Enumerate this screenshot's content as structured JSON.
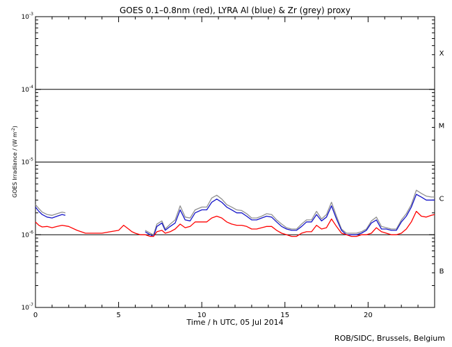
{
  "chart_data": {
    "type": "line",
    "title": "GOES 0.1–0.8nm (red), LYRA Al (blue) & Zr (grey) proxy",
    "xlabel": "Time / h UTC, 05 Jul 2014",
    "ylabel": "GOES Irradiance / (W m",
    "ylabel_sup": "-2",
    "ylabel_close": ")",
    "yscale": "log",
    "xlim": [
      0,
      24
    ],
    "ylim": [
      1e-07,
      0.001
    ],
    "x_ticks": [
      0,
      5,
      10,
      15,
      20
    ],
    "x_tick_labels": [
      "0",
      "5",
      "10",
      "15",
      "20"
    ],
    "y_ticks": [
      1e-07,
      1e-06,
      1e-05,
      0.0001,
      0.001
    ],
    "y_tick_labels": [
      {
        "base": "10",
        "exp": "-7"
      },
      {
        "base": "10",
        "exp": "-6"
      },
      {
        "base": "10",
        "exp": "-5"
      },
      {
        "base": "10",
        "exp": "-4"
      },
      {
        "base": "10",
        "exp": "-3"
      }
    ],
    "flare_class_levels": [
      1e-06,
      1e-05,
      0.0001
    ],
    "flare_classes": [
      {
        "label": "X",
        "y": 0.00032
      },
      {
        "label": "M",
        "y": 3.2e-05
      },
      {
        "label": "C",
        "y": 3.2e-06
      },
      {
        "label": "B",
        "y": 3.2e-07
      }
    ],
    "series": [
      {
        "color": "#ff0000",
        "x": [
          0,
          0.2,
          0.4,
          0.7,
          1.0,
          1.3,
          1.6,
          2.0,
          2.5,
          3.0,
          3.5,
          4.0,
          4.5,
          5.0,
          5.3,
          5.6,
          5.8,
          6.0,
          6.3,
          6.6,
          6.9,
          7.1,
          7.3,
          7.6,
          7.8,
          8.1,
          8.4,
          8.7,
          9.0,
          9.3,
          9.6,
          10.0,
          10.3,
          10.6,
          10.9,
          11.2,
          11.5,
          11.8,
          12.1,
          12.4,
          12.7,
          13.0,
          13.3,
          13.6,
          13.9,
          14.2,
          14.5,
          14.8,
          15.1,
          15.4,
          15.7,
          16.0,
          16.3,
          16.6,
          16.9,
          17.2,
          17.5,
          17.8,
          18.1,
          18.4,
          18.7,
          19.0,
          19.3,
          19.6,
          19.9,
          20.2,
          20.5,
          20.8,
          21.1,
          21.4,
          21.7,
          22.0,
          22.3,
          22.6,
          22.9,
          23.2,
          23.5,
          23.8,
          24.0
        ],
        "y": [
          1.5e-06,
          1.35e-06,
          1.28e-06,
          1.3e-06,
          1.25e-06,
          1.3e-06,
          1.35e-06,
          1.3e-06,
          1.15e-06,
          1.05e-06,
          1.05e-06,
          1.05e-06,
          1.1e-06,
          1.15e-06,
          1.35e-06,
          1.2e-06,
          1.1e-06,
          1.05e-06,
          1e-06,
          1e-06,
          9.5e-07,
          9.5e-07,
          1.1e-06,
          1.15e-06,
          1.05e-06,
          1.1e-06,
          1.2e-06,
          1.4e-06,
          1.25e-06,
          1.3e-06,
          1.5e-06,
          1.5e-06,
          1.5e-06,
          1.7e-06,
          1.8e-06,
          1.7e-06,
          1.5e-06,
          1.4e-06,
          1.35e-06,
          1.35e-06,
          1.3e-06,
          1.2e-06,
          1.2e-06,
          1.25e-06,
          1.3e-06,
          1.3e-06,
          1.15e-06,
          1.05e-06,
          1e-06,
          9.5e-07,
          9.5e-07,
          1.05e-06,
          1.1e-06,
          1.1e-06,
          1.35e-06,
          1.2e-06,
          1.25e-06,
          1.65e-06,
          1.3e-06,
          1.05e-06,
          1e-06,
          9.5e-07,
          9.5e-07,
          1e-06,
          1e-06,
          1.05e-06,
          1.25e-06,
          1.1e-06,
          1.05e-06,
          1e-06,
          1e-06,
          1.05e-06,
          1.2e-06,
          1.5e-06,
          2.1e-06,
          1.8e-06,
          1.75e-06,
          1.85e-06,
          1.9e-06
        ]
      },
      {
        "color": "#1414c8",
        "x": [
          0,
          0.2,
          0.4,
          0.7,
          1.0,
          1.3,
          1.6,
          1.8,
          6.6,
          6.9,
          7.1,
          7.3,
          7.6,
          7.8,
          8.1,
          8.4,
          8.7,
          9.0,
          9.3,
          9.6,
          10.0,
          10.3,
          10.6,
          10.9,
          11.2,
          11.5,
          11.8,
          12.1,
          12.4,
          12.7,
          13.0,
          13.3,
          13.6,
          13.9,
          14.2,
          14.5,
          14.8,
          15.1,
          15.4,
          15.7,
          16.0,
          16.3,
          16.6,
          16.9,
          17.2,
          17.5,
          17.8,
          18.1,
          18.4,
          18.7,
          19.0,
          19.3,
          19.6,
          19.9,
          20.2,
          20.5,
          20.8,
          21.1,
          21.4,
          21.7,
          22.0,
          22.3,
          22.6,
          22.9,
          23.2,
          23.5,
          23.8,
          24.0
        ],
        "y": [
          2.4e-06,
          2.1e-06,
          1.9e-06,
          1.75e-06,
          1.7e-06,
          1.8e-06,
          1.9e-06,
          1.85e-06,
          1.1e-06,
          1e-06,
          9.5e-07,
          1.3e-06,
          1.45e-06,
          1.15e-06,
          1.3e-06,
          1.45e-06,
          2.2e-06,
          1.6e-06,
          1.55e-06,
          2e-06,
          2.2e-06,
          2.2e-06,
          2.8e-06,
          3.1e-06,
          2.8e-06,
          2.4e-06,
          2.2e-06,
          2e-06,
          2e-06,
          1.8e-06,
          1.6e-06,
          1.6e-06,
          1.7e-06,
          1.8e-06,
          1.75e-06,
          1.5e-06,
          1.3e-06,
          1.2e-06,
          1.15e-06,
          1.15e-06,
          1.3e-06,
          1.5e-06,
          1.5e-06,
          1.9e-06,
          1.55e-06,
          1.75e-06,
          2.5e-06,
          1.65e-06,
          1.15e-06,
          1e-06,
          1e-06,
          1e-06,
          1.05e-06,
          1.15e-06,
          1.45e-06,
          1.6e-06,
          1.2e-06,
          1.2e-06,
          1.15e-06,
          1.15e-06,
          1.5e-06,
          1.8e-06,
          2.4e-06,
          3.6e-06,
          3.3e-06,
          3e-06,
          3e-06,
          3e-06
        ]
      },
      {
        "color": "#909090",
        "x": [
          0,
          0.2,
          0.4,
          0.7,
          1.0,
          1.3,
          1.6,
          1.8,
          6.6,
          6.9,
          7.1,
          7.3,
          7.6,
          7.8,
          8.1,
          8.4,
          8.7,
          9.0,
          9.3,
          9.6,
          10.0,
          10.3,
          10.6,
          10.9,
          11.2,
          11.5,
          11.8,
          12.1,
          12.4,
          12.7,
          13.0,
          13.3,
          13.6,
          13.9,
          14.2,
          14.5,
          14.8,
          15.1,
          15.4,
          15.7,
          16.0,
          16.3,
          16.6,
          16.9,
          17.2,
          17.5,
          17.8,
          18.1,
          18.4,
          18.7,
          19.0,
          19.3,
          19.6,
          19.9,
          20.2,
          20.5,
          20.8,
          21.1,
          21.4,
          21.7,
          22.0,
          22.3,
          22.6,
          22.9,
          23.2,
          23.5,
          23.8,
          24.0
        ],
        "y": [
          2.6e-06,
          2.3e-06,
          2.05e-06,
          1.9e-06,
          1.85e-06,
          1.95e-06,
          2.05e-06,
          2e-06,
          1.15e-06,
          1.05e-06,
          1e-06,
          1.4e-06,
          1.55e-06,
          1.2e-06,
          1.4e-06,
          1.6e-06,
          2.5e-06,
          1.75e-06,
          1.7e-06,
          2.2e-06,
          2.4e-06,
          2.4e-06,
          3.2e-06,
          3.5e-06,
          3.1e-06,
          2.6e-06,
          2.4e-06,
          2.2e-06,
          2.15e-06,
          1.95e-06,
          1.7e-06,
          1.7e-06,
          1.8e-06,
          1.95e-06,
          1.9e-06,
          1.6e-06,
          1.4e-06,
          1.25e-06,
          1.2e-06,
          1.2e-06,
          1.4e-06,
          1.6e-06,
          1.6e-06,
          2.1e-06,
          1.65e-06,
          1.9e-06,
          2.8e-06,
          1.8e-06,
          1.2e-06,
          1.05e-06,
          1.05e-06,
          1.05e-06,
          1.1e-06,
          1.2e-06,
          1.55e-06,
          1.75e-06,
          1.3e-06,
          1.25e-06,
          1.2e-06,
          1.2e-06,
          1.6e-06,
          1.95e-06,
          2.6e-06,
          4.1e-06,
          3.7e-06,
          3.4e-06,
          3.3e-06,
          3.3e-06
        ]
      }
    ]
  },
  "footer": "ROB/SIDC, Brussels, Belgium"
}
